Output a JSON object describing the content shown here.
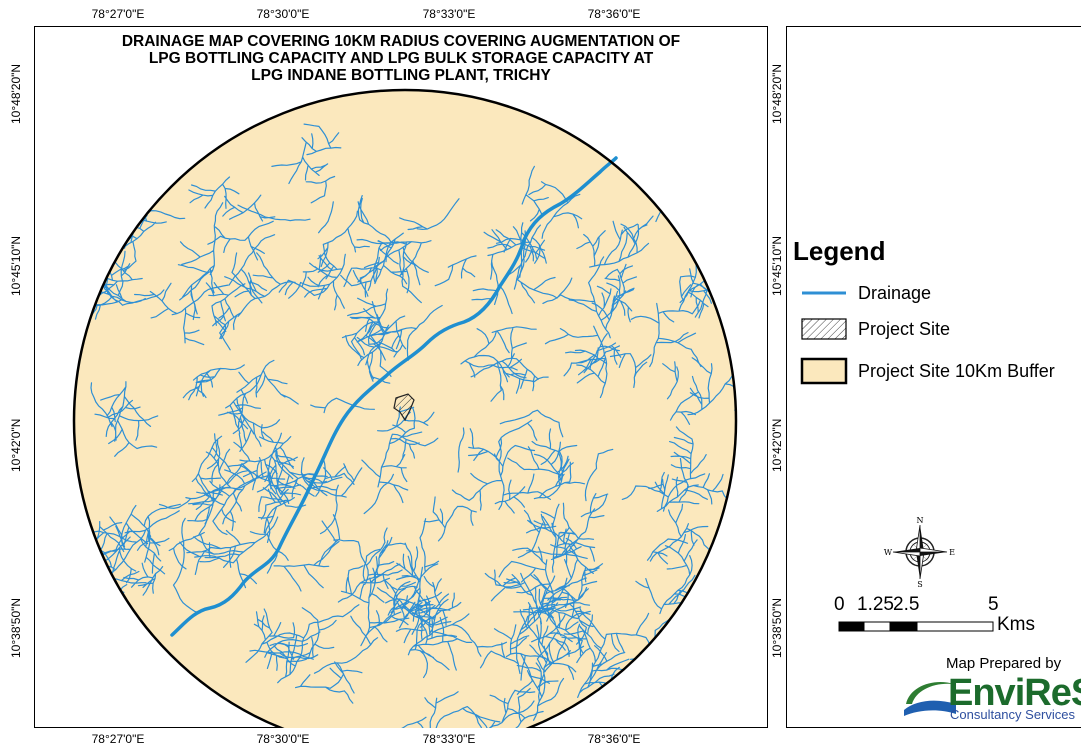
{
  "title": {
    "line1": "DRAINAGE MAP COVERING 10KM RADIUS  COVERING AUGMENTATION OF",
    "line2": "LPG BOTTLING CAPACITY AND LPG BULK STORAGE CAPACITY AT",
    "line3": "LPG INDANE BOTTLING PLANT, TRICHY"
  },
  "grid": {
    "longitudes": [
      "78°27'0\"E",
      "78°30'0\"E",
      "78°33'0\"E",
      "78°36'0\"E"
    ],
    "latitudes": [
      "10°48'20\"N",
      "10°45'10\"N",
      "10°42'0\"N",
      "10°38'50\"N"
    ]
  },
  "legend": {
    "title": "Legend",
    "items": [
      {
        "label": "Drainage",
        "symbol": "line",
        "color": "#2e8fd4"
      },
      {
        "label": "Project Site",
        "symbol": "hatched-polygon",
        "color": "#555555"
      },
      {
        "label": "Project Site 10Km Buffer",
        "symbol": "filled-polygon",
        "color": "#fbe8bd"
      }
    ]
  },
  "north_arrow": {
    "n": "N",
    "s": "S",
    "e": "E",
    "w": "W"
  },
  "scale_bar": {
    "labels": [
      "0",
      "1.25",
      "2.5",
      "5"
    ],
    "unit": "Kms"
  },
  "credit": {
    "prepared_by": "Map Prepared by",
    "logo": "EnviReS",
    "logo_sub": "Consultancy Services"
  },
  "colors": {
    "buffer_fill": "#fbe8bd",
    "drainage": "#2e8fd4",
    "main_river": "#1f8fd0",
    "boundary": "#000000"
  }
}
